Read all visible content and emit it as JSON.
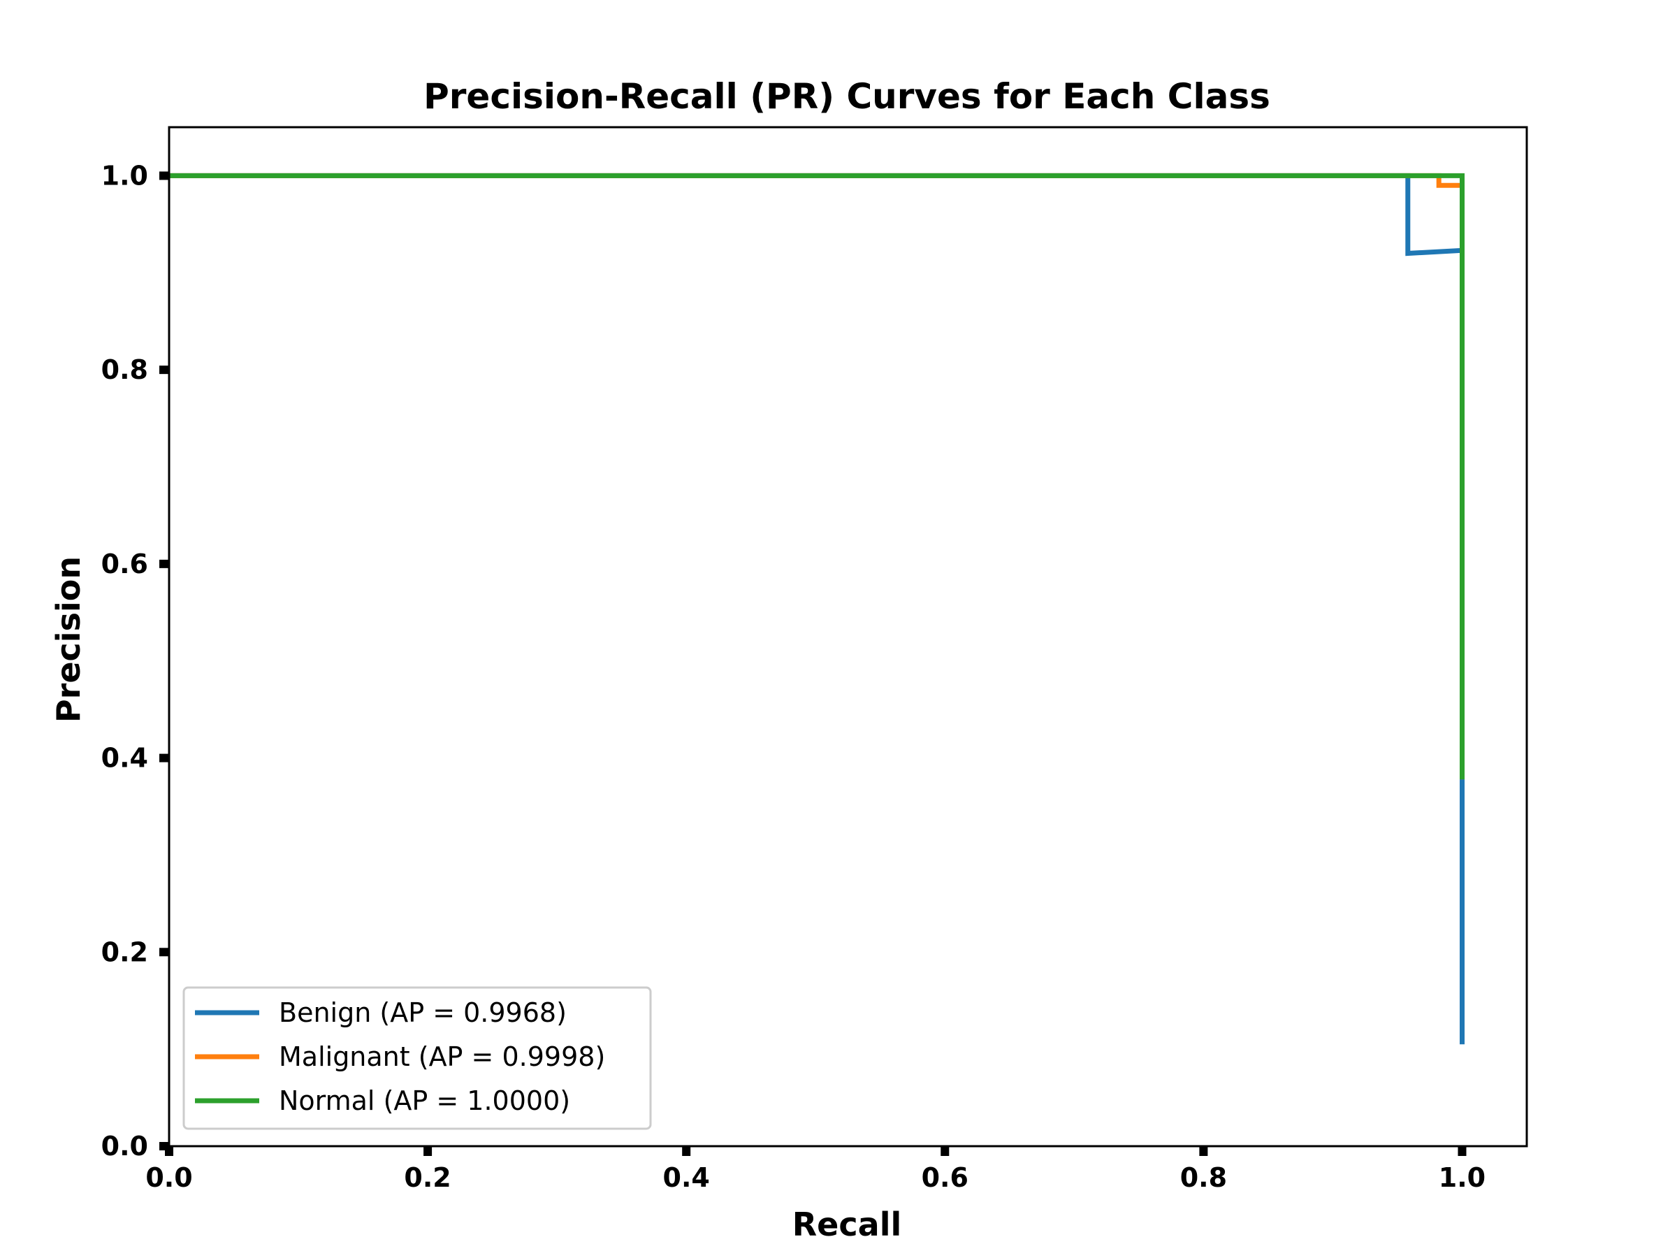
{
  "chart_data": {
    "type": "line",
    "title": "Precision-Recall (PR) Curves for Each Class",
    "xlabel": "Recall",
    "ylabel": "Precision",
    "xlim": [
      0.0,
      1.05
    ],
    "ylim": [
      0.0,
      1.05
    ],
    "xticks": [
      "0.0",
      "0.2",
      "0.4",
      "0.6",
      "0.8",
      "1.0"
    ],
    "yticks": [
      "0.0",
      "0.2",
      "0.4",
      "0.6",
      "0.8",
      "1.0"
    ],
    "xtick_values": [
      0.0,
      0.2,
      0.4,
      0.6,
      0.8,
      1.0
    ],
    "ytick_values": [
      0.0,
      0.2,
      0.4,
      0.6,
      0.8,
      1.0
    ],
    "grid": false,
    "legend_position": "lower-left",
    "series": [
      {
        "name": "Benign (AP = 0.9968)",
        "color": "#1f77b4",
        "points": [
          [
            0.0,
            1.0
          ],
          [
            0.958,
            1.0
          ],
          [
            0.958,
            0.92
          ],
          [
            1.0,
            0.923
          ],
          [
            1.0,
            0.105
          ]
        ]
      },
      {
        "name": "Malignant (AP = 0.9998)",
        "color": "#ff7f0e",
        "points": [
          [
            0.0,
            1.0
          ],
          [
            0.982,
            1.0
          ],
          [
            0.982,
            0.99
          ],
          [
            1.0,
            0.99
          ],
          [
            1.0,
            0.378
          ]
        ]
      },
      {
        "name": "Normal (AP = 1.0000)",
        "color": "#2ca02c",
        "points": [
          [
            0.0,
            1.0
          ],
          [
            1.0,
            1.0
          ],
          [
            1.0,
            0.378
          ]
        ]
      }
    ]
  }
}
